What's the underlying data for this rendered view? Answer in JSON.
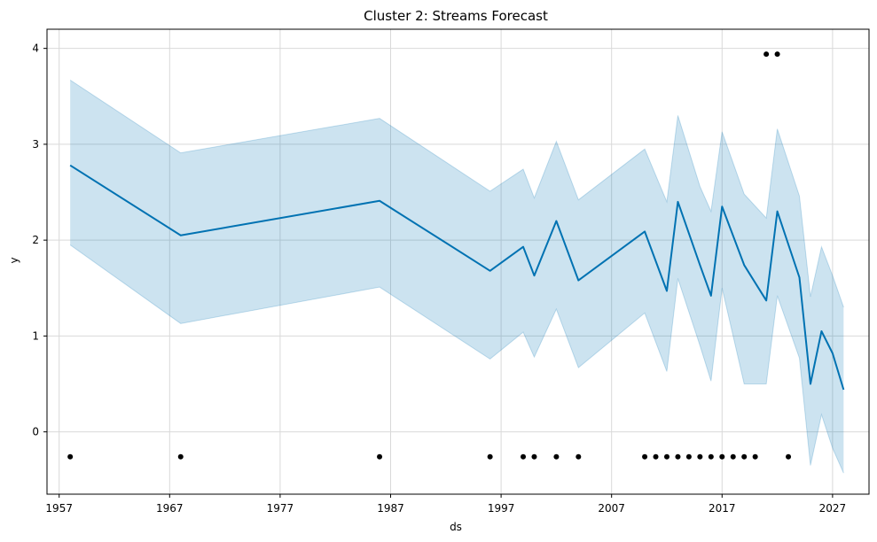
{
  "chart_data": {
    "type": "line",
    "title": "Cluster 2: Streams Forecast",
    "xlabel": "ds",
    "ylabel": "y",
    "xlim": [
      1955.9,
      2030.3
    ],
    "ylim": [
      -0.65,
      4.2
    ],
    "x_ticks": [
      1957,
      1967,
      1977,
      1987,
      1997,
      2007,
      2017,
      2027
    ],
    "y_ticks": [
      0,
      1,
      2,
      3,
      4
    ],
    "grid": true,
    "colors": {
      "forecast_line": "#0072B2",
      "uncertainty_band": "#0072B2",
      "observed_points": "#000000",
      "grid": "#d9d9d9"
    },
    "forecast": {
      "x": [
        1958,
        1968,
        1986,
        1996,
        1999,
        2000,
        2002,
        2004,
        2010,
        2012,
        2013,
        2015,
        2016,
        2017,
        2019,
        2021,
        2022,
        2024,
        2025,
        2026,
        2027,
        2028
      ],
      "yhat": [
        2.78,
        2.05,
        2.41,
        1.68,
        1.93,
        1.63,
        2.2,
        1.58,
        2.09,
        1.47,
        2.4,
        1.74,
        1.42,
        2.35,
        1.74,
        1.37,
        2.3,
        1.61,
        0.5,
        1.05,
        0.82,
        0.44
      ],
      "yhat_lower": [
        1.95,
        1.13,
        1.51,
        0.76,
        1.04,
        0.78,
        1.28,
        0.67,
        1.24,
        0.63,
        1.6,
        0.9,
        0.53,
        1.5,
        0.5,
        0.5,
        1.42,
        0.77,
        -0.35,
        0.18,
        -0.17,
        -0.43
      ],
      "yhat_upper": [
        3.67,
        2.91,
        3.27,
        2.51,
        2.74,
        2.44,
        3.03,
        2.42,
        2.95,
        2.4,
        3.3,
        2.56,
        2.3,
        3.13,
        2.48,
        2.23,
        3.16,
        2.46,
        1.41,
        1.93,
        1.63,
        1.3
      ]
    },
    "observed": {
      "x": [
        1958,
        1968,
        1986,
        1996,
        1999,
        2000,
        2002,
        2004,
        2010,
        2011,
        2012,
        2013,
        2014,
        2015,
        2016,
        2017,
        2018,
        2019,
        2020,
        2021,
        2022,
        2023
      ],
      "y": [
        -0.26,
        -0.26,
        -0.26,
        -0.26,
        -0.26,
        -0.26,
        -0.26,
        -0.26,
        -0.26,
        -0.26,
        -0.26,
        -0.26,
        -0.26,
        -0.26,
        -0.26,
        -0.26,
        -0.26,
        -0.26,
        -0.26,
        3.94,
        3.94,
        -0.26
      ]
    }
  }
}
